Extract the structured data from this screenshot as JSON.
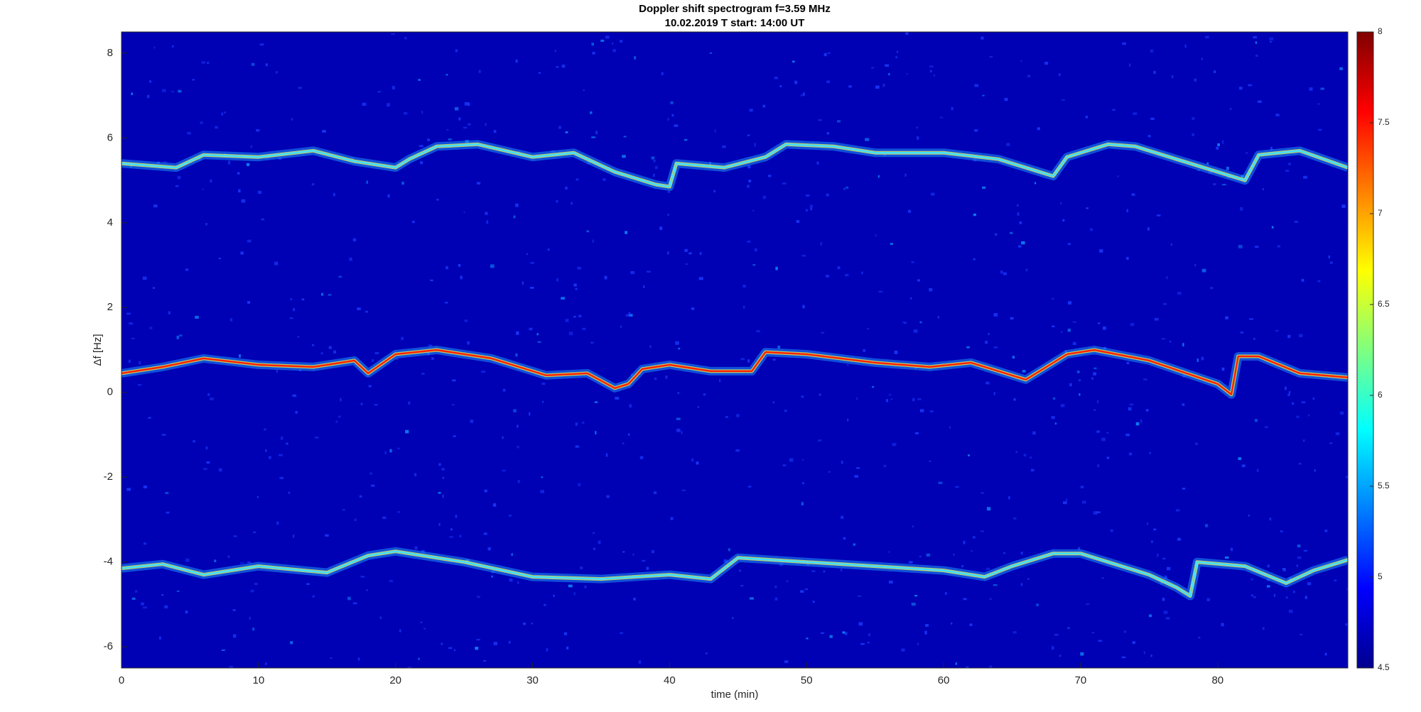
{
  "chart_data": {
    "type": "spectrogram",
    "title": "Doppler shift spectrogram f=3.59 MHz",
    "subtitle": "10.02.2019   T start: 14:00 UT",
    "xlabel": "time (min)",
    "ylabel": "Δf [Hz]",
    "xlim": [
      0,
      89.5
    ],
    "ylim": [
      -6.5,
      8.5
    ],
    "xticks": [
      0,
      10,
      20,
      30,
      40,
      50,
      60,
      70,
      80
    ],
    "yticks": [
      -6,
      -4,
      -2,
      0,
      2,
      4,
      6,
      8
    ],
    "grid": false,
    "background_color": "#0000b4",
    "colormap": "jet",
    "clim": [
      4.5,
      8
    ],
    "cticks": [
      4.5,
      5,
      5.5,
      6,
      6.5,
      7,
      7.5,
      8
    ],
    "series": [
      {
        "color": "#40e0ff",
        "x": [
          0,
          4,
          6,
          10,
          14,
          17,
          20,
          21,
          23,
          26,
          30,
          33,
          36,
          39,
          40,
          40.5,
          44,
          47,
          48.5,
          52,
          55,
          60,
          64,
          68,
          69,
          72,
          74,
          78,
          82,
          83,
          86,
          89.5
        ],
        "values": [
          5.4,
          5.3,
          5.6,
          5.55,
          5.7,
          5.45,
          5.3,
          5.5,
          5.8,
          5.85,
          5.55,
          5.65,
          5.2,
          4.9,
          4.85,
          5.4,
          5.3,
          5.55,
          5.85,
          5.8,
          5.65,
          5.65,
          5.5,
          5.1,
          5.55,
          5.85,
          5.8,
          5.4,
          5.0,
          5.6,
          5.7,
          5.3
        ]
      },
      {
        "color": "#ff2000",
        "x": [
          0,
          3,
          6,
          10,
          14,
          17,
          18,
          20,
          23,
          27,
          31,
          34,
          36,
          37,
          38,
          40,
          43,
          46,
          47,
          50,
          55,
          59,
          62,
          66,
          69,
          71,
          75,
          80,
          81,
          81.5,
          83,
          86,
          89.5
        ],
        "values": [
          0.45,
          0.6,
          0.8,
          0.65,
          0.6,
          0.75,
          0.45,
          0.9,
          1.0,
          0.8,
          0.4,
          0.45,
          0.1,
          0.2,
          0.55,
          0.65,
          0.5,
          0.5,
          0.95,
          0.9,
          0.7,
          0.6,
          0.7,
          0.3,
          0.9,
          1.0,
          0.75,
          0.2,
          -0.05,
          0.85,
          0.85,
          0.45,
          0.35
        ]
      },
      {
        "color": "#40e0ff",
        "x": [
          0,
          3,
          6,
          10,
          15,
          18,
          20,
          25,
          30,
          35,
          40,
          43,
          45,
          50,
          55,
          60,
          63,
          65,
          68,
          70,
          75,
          77,
          78,
          78.5,
          82,
          85,
          87,
          89.5
        ],
        "values": [
          -4.15,
          -4.05,
          -4.3,
          -4.1,
          -4.25,
          -3.85,
          -3.75,
          -4.0,
          -4.35,
          -4.4,
          -4.3,
          -4.4,
          -3.9,
          -4.0,
          -4.1,
          -4.2,
          -4.35,
          -4.1,
          -3.8,
          -3.8,
          -4.3,
          -4.6,
          -4.8,
          -4.0,
          -4.1,
          -4.5,
          -4.2,
          -3.95
        ]
      }
    ]
  }
}
